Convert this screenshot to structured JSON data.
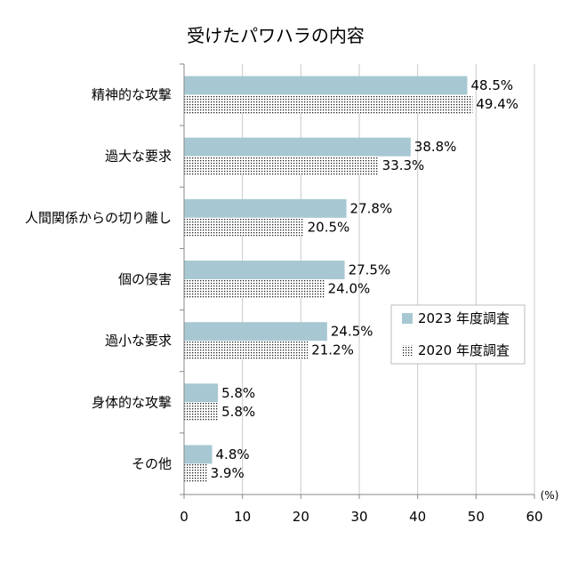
{
  "chart_data": {
    "type": "bar",
    "orientation": "horizontal",
    "title": "受けたパワハラの内容",
    "unit_label": "(%)",
    "categories": [
      "精神的な攻撃",
      "過大な要求",
      "人間関係からの切り離し",
      "個の侵害",
      "過小な要求",
      "身体的な攻撃",
      "その他"
    ],
    "series": [
      {
        "name": "2023 年度調査",
        "values": [
          48.5,
          38.8,
          27.8,
          27.5,
          24.5,
          5.8,
          4.8
        ],
        "labels": [
          "48.5%",
          "38.8%",
          "27.8%",
          "27.5%",
          "24.5%",
          "5.8%",
          "4.8%"
        ],
        "fill": "solid",
        "color": "#a7c8d2"
      },
      {
        "name": "2020 年度調査",
        "values": [
          49.4,
          33.3,
          20.5,
          24.0,
          21.2,
          5.8,
          3.9
        ],
        "labels": [
          "49.4%",
          "33.3%",
          "20.5%",
          "24.0%",
          "21.2%",
          "5.8%",
          "3.9%"
        ],
        "fill": "dotted",
        "color": "#333333"
      }
    ],
    "xlim": [
      0,
      60
    ],
    "xticks": [
      "0",
      "10",
      "20",
      "30",
      "40",
      "50",
      "60"
    ],
    "grid": "vertical",
    "legend_position": "right-middle"
  }
}
